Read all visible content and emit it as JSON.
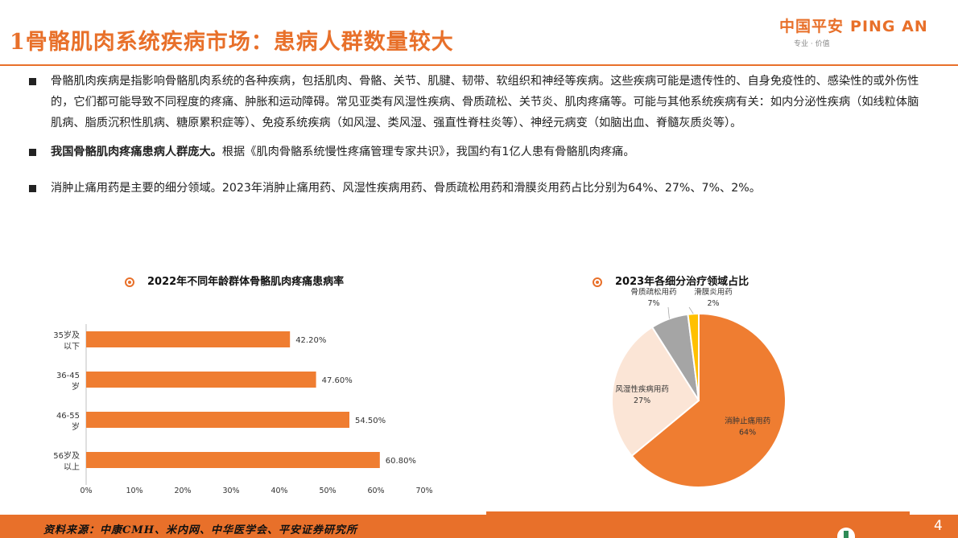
{
  "header": {
    "title": "1骨骼肌肉系统疾病市场：患病人群数量较大",
    "logo_cn": "中国平安",
    "logo_en": "PING AN",
    "logo_tagline": "专业 · 价值"
  },
  "bullets": {
    "b1": "骨骼肌肉疾病是指影响骨骼肌肉系统的各种疾病，包括肌肉、骨骼、关节、肌腱、韧带、软组织和神经等疾病。这些疾病可能是遗传性的、自身免疫性的、感染性的或外伤性的，它们都可能导致不同程度的疼痛、肿胀和运动障碍。常见亚类有风湿性疾病、骨质疏松、关节炎、肌肉疼痛等。可能与其他系统疾病有关：如内分泌性疾病（如线粒体脑肌病、脂质沉积性肌病、糖原累积症等）、免疫系统疾病（如风湿、类风湿、强直性脊柱炎等）、神经元病变（如脑出血、脊髓灰质炎等）。",
    "b2_bold": "我国骨骼肌肉疼痛患病人群庞大。",
    "b2_rest": "根据《肌肉骨骼系统慢性疼痛管理专家共识》，我国约有1亿人患有骨骼肌肉疼痛。",
    "b3": "消肿止痛用药是主要的细分领域。2023年消肿止痛用药、风湿性疾病用药、骨质疏松用药和滑膜炎用药占比分别为64%、27%、7%、2%。"
  },
  "chart_data": [
    {
      "type": "bar",
      "orientation": "horizontal",
      "title": "2022年不同年龄群体骨骼肌肉疼痛患病率",
      "categories": [
        [
          "35岁及",
          "以下"
        ],
        [
          "36-45",
          "岁"
        ],
        [
          "46-55",
          "岁"
        ],
        [
          "56岁及",
          "以上"
        ]
      ],
      "values": [
        42.2,
        47.6,
        54.5,
        60.8
      ],
      "value_labels": [
        "42.20%",
        "47.60%",
        "54.50%",
        "60.80%"
      ],
      "xlim": [
        0,
        70
      ],
      "x_ticks": [
        "0%",
        "10%",
        "20%",
        "30%",
        "40%",
        "50%",
        "60%",
        "70%"
      ],
      "bar_color": "#ef7d31"
    },
    {
      "type": "pie",
      "title": "2023年各细分治疗领域占比",
      "slices": [
        {
          "label": "消肿止痛用药",
          "value": 64,
          "pct": "64%",
          "color": "#ef7d31"
        },
        {
          "label": "风湿性疾病用药",
          "value": 27,
          "pct": "27%",
          "color": "#fbe5d6"
        },
        {
          "label": "骨质疏松用药",
          "value": 7,
          "pct": "7%",
          "color": "#a5a5a5"
        },
        {
          "label": "滑膜炎用药",
          "value": 2,
          "pct": "2%",
          "color": "#ffc000"
        }
      ]
    }
  ],
  "footer": {
    "source": "资料来源：中康CMH、米内网、中华医学会、平安证券研究所",
    "page": "4"
  }
}
